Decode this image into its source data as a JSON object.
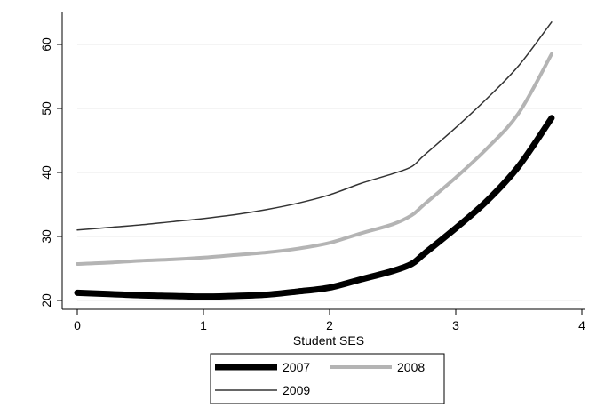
{
  "chart_data": {
    "type": "line",
    "title": "",
    "xlabel": "Student SES",
    "ylabel": "",
    "xlim": [
      0,
      4
    ],
    "ylim": [
      20,
      65
    ],
    "x_ticks": [
      0,
      1,
      2,
      3,
      4
    ],
    "y_ticks": [
      20,
      30,
      40,
      50,
      60
    ],
    "grid": "horizontal",
    "legend_position": "bottom",
    "series": [
      {
        "name": "2007",
        "color": "#000000",
        "style": "thick",
        "points": [
          [
            0,
            21.2
          ],
          [
            0.25,
            21.0
          ],
          [
            0.5,
            20.8
          ],
          [
            0.75,
            20.7
          ],
          [
            1.0,
            20.6
          ],
          [
            1.25,
            20.7
          ],
          [
            1.5,
            20.9
          ],
          [
            1.75,
            21.4
          ],
          [
            2.0,
            22.0
          ],
          [
            2.25,
            23.3
          ],
          [
            2.5,
            24.6
          ],
          [
            2.65,
            25.7
          ],
          [
            2.75,
            27.3
          ],
          [
            3.0,
            31.3
          ],
          [
            3.25,
            35.6
          ],
          [
            3.5,
            41.0
          ],
          [
            3.76,
            48.5
          ]
        ]
      },
      {
        "name": "2008",
        "color": "#b4b4b4",
        "style": "medium",
        "points": [
          [
            0,
            25.7
          ],
          [
            0.25,
            25.9
          ],
          [
            0.5,
            26.2
          ],
          [
            0.75,
            26.4
          ],
          [
            1.0,
            26.7
          ],
          [
            1.25,
            27.1
          ],
          [
            1.5,
            27.5
          ],
          [
            1.75,
            28.1
          ],
          [
            2.0,
            29.0
          ],
          [
            2.25,
            30.5
          ],
          [
            2.5,
            31.9
          ],
          [
            2.65,
            33.3
          ],
          [
            2.75,
            35.0
          ],
          [
            3.0,
            39.2
          ],
          [
            3.25,
            43.8
          ],
          [
            3.5,
            49.3
          ],
          [
            3.76,
            58.5
          ]
        ]
      },
      {
        "name": "2009",
        "color": "#333333",
        "style": "thin",
        "points": [
          [
            0,
            31.0
          ],
          [
            0.25,
            31.4
          ],
          [
            0.5,
            31.8
          ],
          [
            0.75,
            32.3
          ],
          [
            1.0,
            32.8
          ],
          [
            1.25,
            33.4
          ],
          [
            1.5,
            34.2
          ],
          [
            1.75,
            35.2
          ],
          [
            2.0,
            36.5
          ],
          [
            2.25,
            38.3
          ],
          [
            2.5,
            39.8
          ],
          [
            2.65,
            40.9
          ],
          [
            2.75,
            42.7
          ],
          [
            3.0,
            47.0
          ],
          [
            3.25,
            51.6
          ],
          [
            3.5,
            56.7
          ],
          [
            3.76,
            63.5
          ]
        ]
      }
    ]
  }
}
